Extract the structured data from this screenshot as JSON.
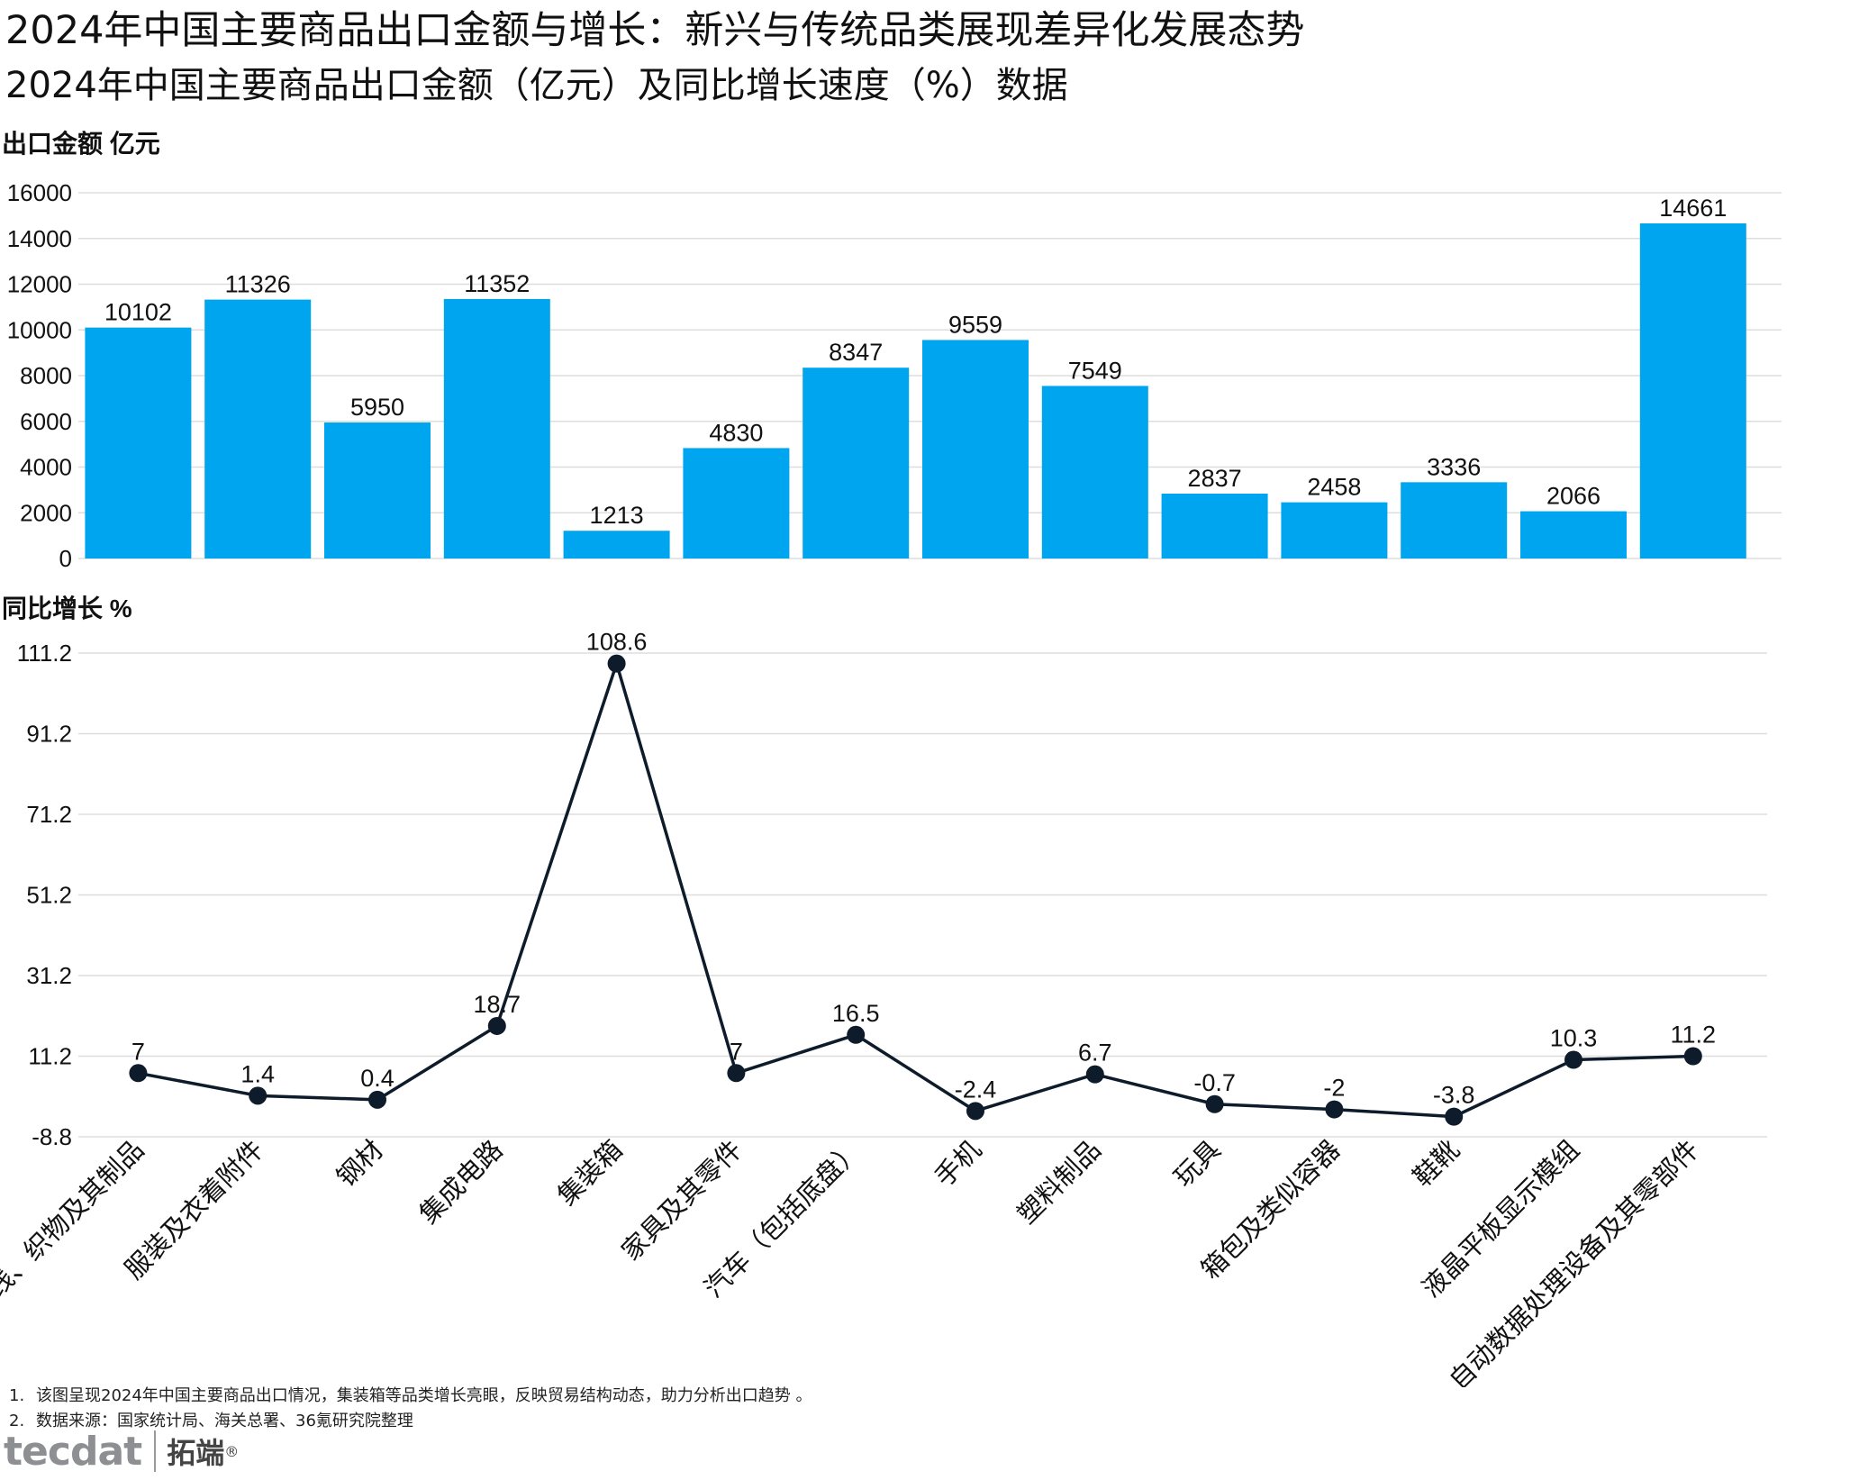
{
  "title": "2024年中国主要商品出口金额与增长：新兴与传统品类展现差异化发展态势",
  "subtitle": "2024年中国主要商品出口金额（亿元）及同比增长速度（%）数据",
  "colors": {
    "bar": "#00a5f0",
    "line": "#0d1b2a",
    "grid": "#dedede",
    "text": "#111111"
  },
  "chart_data": [
    {
      "type": "bar",
      "ylabel": "出口金额  亿元",
      "ylim": [
        0,
        16000
      ],
      "yticks": [
        "0",
        "2000",
        "4000",
        "6000",
        "8000",
        "10000",
        "12000",
        "14000",
        "16000"
      ],
      "categories": [
        "纺织纱线、织物及其制品",
        "服装及衣着附件",
        "钢材",
        "集成电路",
        "集装箱",
        "家具及其零件",
        "汽车（包括底盘）",
        "手机",
        "塑料制品",
        "玩具",
        "箱包及类似容器",
        "鞋靴",
        "液晶平板显示模组",
        "自动数据处理设备及其零部件"
      ],
      "values": [
        10102,
        11326,
        5950,
        11352,
        1213,
        4830,
        8347,
        9559,
        7549,
        2837,
        2458,
        3336,
        2066,
        14661
      ]
    },
    {
      "type": "line",
      "ylabel": "同比增长 %",
      "ylim": [
        -8.8,
        111.2
      ],
      "yticks": [
        "-8.8",
        "11.2",
        "31.2",
        "51.2",
        "71.2",
        "91.2",
        "111.2"
      ],
      "categories": [
        "纺织纱线、织物及其制品",
        "服装及衣着附件",
        "钢材",
        "集成电路",
        "集装箱",
        "家具及其零件",
        "汽车（包括底盘）",
        "手机",
        "塑料制品",
        "玩具",
        "箱包及类似容器",
        "鞋靴",
        "液晶平板显示模组",
        "自动数据处理设备及其零部件"
      ],
      "values": [
        7,
        1.4,
        0.4,
        18.7,
        108.6,
        7,
        16.5,
        -2.4,
        6.7,
        -0.7,
        -2,
        -3.8,
        10.3,
        11.2
      ]
    }
  ],
  "notes": [
    {
      "num": "1.",
      "text": "该图呈现2024年中国主要商品出口情况，集装箱等品类增长亮眼，反映贸易结构动态，助力分析出口趋势 。"
    },
    {
      "num": "2.",
      "text": "数据来源：国家统计局、海关总署、36氪研究院整理"
    }
  ],
  "logo": {
    "en": "tecdat",
    "cn": "拓端",
    "reg": "®"
  }
}
